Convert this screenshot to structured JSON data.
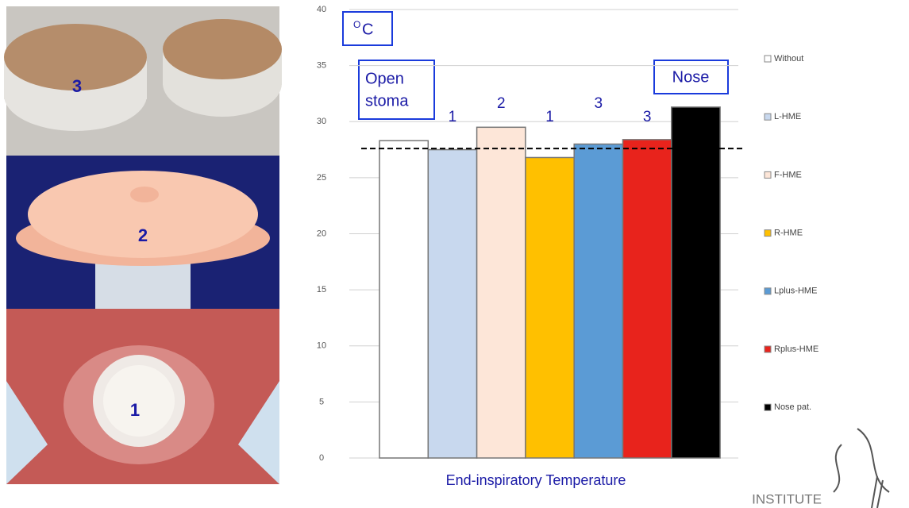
{
  "chart_data": {
    "type": "bar",
    "categories": [
      "Without",
      "L-HME",
      "F-HME",
      "R-HME",
      "Lplus-HME",
      "Rplus-HME",
      "Nose pat."
    ],
    "values": [
      28.3,
      27.5,
      29.5,
      26.8,
      28.0,
      28.4,
      31.3
    ],
    "colors": [
      "#ffffff",
      "#c8d8ee",
      "#fde6d8",
      "#ffc000",
      "#5b9bd5",
      "#e8231c",
      "#000000"
    ],
    "bar_notes": [
      null,
      "1",
      "2",
      "1",
      "3",
      "3",
      null
    ],
    "reference_line": 27.6,
    "ylim": [
      0,
      40
    ],
    "yticks": [
      0,
      5,
      10,
      15,
      20,
      25,
      30,
      35,
      40
    ],
    "grid": true,
    "unit_label": {
      "sup": "O",
      "main": "C"
    },
    "open_label": [
      "Open",
      "stoma"
    ],
    "nose_label": "Nose",
    "xlabel": "End-inspiratory Temperature"
  },
  "photos": {
    "labels": [
      "3",
      "2",
      "1"
    ]
  },
  "logo_text": "INSTITUTE"
}
